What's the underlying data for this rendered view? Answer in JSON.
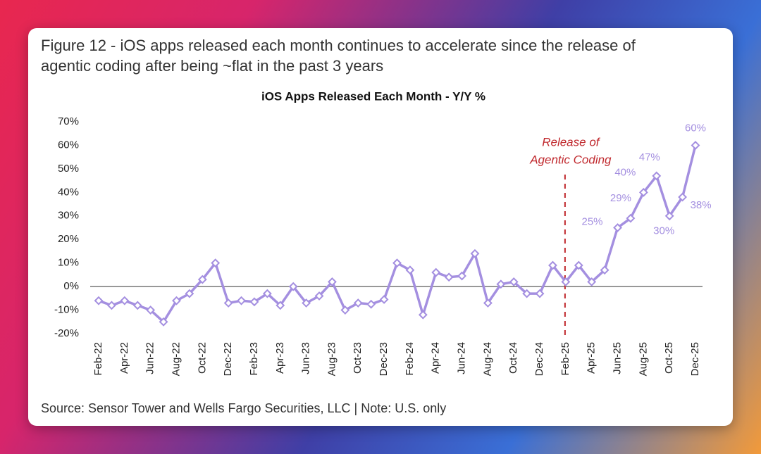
{
  "caption": [
    "Figure 12 - iOS apps released each month continues to accelerate since the release of",
    "agentic coding after being ~flat in the past 3 years"
  ],
  "source": "Source: Sensor Tower and Wells Fargo Securities, LLC | Note: U.S. only",
  "chart_data": {
    "type": "line",
    "title": "iOS Apps Released Each Month - Y/Y %",
    "categories": [
      "Feb-22",
      null,
      "Apr-22",
      null,
      "Jun-22",
      null,
      "Aug-22",
      null,
      "Oct-22",
      null,
      "Dec-22",
      null,
      "Feb-23",
      null,
      "Apr-23",
      null,
      "Jun-23",
      null,
      "Aug-23",
      null,
      "Oct-23",
      null,
      "Dec-23",
      null,
      "Feb-24",
      null,
      "Apr-24",
      null,
      "Jun-24",
      null,
      "Aug-24",
      null,
      "Oct-24",
      null,
      "Dec-24",
      null,
      "Feb-25",
      null,
      "Apr-25",
      null,
      "Jun-25",
      null,
      "Aug-25",
      null,
      "Oct-25",
      null,
      "Dec-25"
    ],
    "values": [
      -6,
      -8,
      -6,
      -8,
      -10,
      -15,
      -6,
      -3,
      3,
      10,
      -7,
      -6,
      -6.5,
      -3,
      -8,
      0,
      -7,
      -4,
      2,
      -10,
      -7,
      -7.5,
      -5.5,
      10,
      7,
      -12,
      6,
      4,
      4.5,
      14,
      -7,
      1,
      2,
      -3,
      -3,
      9,
      2,
      9,
      2,
      7,
      25,
      29,
      40,
      47,
      30,
      38,
      60
    ],
    "value_labels": [
      null,
      null,
      null,
      null,
      null,
      null,
      null,
      null,
      null,
      null,
      null,
      null,
      null,
      null,
      null,
      null,
      null,
      null,
      null,
      null,
      null,
      null,
      null,
      null,
      null,
      null,
      null,
      null,
      null,
      null,
      null,
      null,
      null,
      null,
      null,
      null,
      null,
      null,
      null,
      null,
      "25%",
      "29%",
      "40%",
      "47%",
      "30%",
      "38%",
      "60%"
    ],
    "color": "#a48fe0",
    "ylim": [
      -20,
      70
    ],
    "yticks": [
      {
        "value": -20,
        "label": "-20%"
      },
      {
        "value": -10,
        "label": "-10%"
      },
      {
        "value": 0,
        "label": "0%"
      },
      {
        "value": 10,
        "label": "10%"
      },
      {
        "value": 20,
        "label": "20%"
      },
      {
        "value": 30,
        "label": "30%"
      },
      {
        "value": 40,
        "label": "40%"
      },
      {
        "value": 50,
        "label": "50%"
      },
      {
        "value": 60,
        "label": "60%"
      },
      {
        "value": 70,
        "label": "70%"
      }
    ],
    "annotation": {
      "lines": [
        "Release of",
        "Agentic Coding"
      ],
      "at": "Feb-25",
      "color": "#c0282d"
    }
  }
}
